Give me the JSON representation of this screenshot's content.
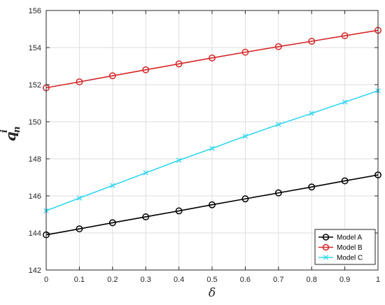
{
  "chart_data": {
    "type": "line",
    "title": "",
    "xlabel": "δ",
    "ylabel": {
      "base": "q",
      "superscript": "i",
      "subscript": "n"
    },
    "xlim": [
      0,
      1
    ],
    "ylim": [
      142,
      156
    ],
    "x": [
      0,
      0.1,
      0.2,
      0.3,
      0.4,
      0.5,
      0.6,
      0.7,
      0.8,
      0.9,
      1.0
    ],
    "xticks": [
      "0",
      "0.1",
      "0.2",
      "0.3",
      "0.4",
      "0.5",
      "0.6",
      "0.7",
      "0.8",
      "0.9",
      "1"
    ],
    "yticks": [
      "142",
      "144",
      "146",
      "148",
      "150",
      "152",
      "154",
      "156"
    ],
    "grid": true,
    "legend_position": "bottom-right",
    "series": [
      {
        "name": "Model A",
        "color": "#000000",
        "marker": "circle",
        "values": [
          143.9,
          144.22,
          144.55,
          144.87,
          145.19,
          145.52,
          145.84,
          146.16,
          146.48,
          146.81,
          147.13
        ]
      },
      {
        "name": "Model B",
        "color": "#d62728",
        "marker": "circle",
        "values": [
          151.83,
          152.15,
          152.48,
          152.8,
          153.12,
          153.44,
          153.75,
          154.05,
          154.34,
          154.64,
          154.93
        ]
      },
      {
        "name": "Model C",
        "color": "#33d6f2",
        "marker": "x",
        "values": [
          145.2,
          145.88,
          146.56,
          147.24,
          147.92,
          148.56,
          149.22,
          149.85,
          150.45,
          151.06,
          151.67
        ]
      }
    ]
  }
}
